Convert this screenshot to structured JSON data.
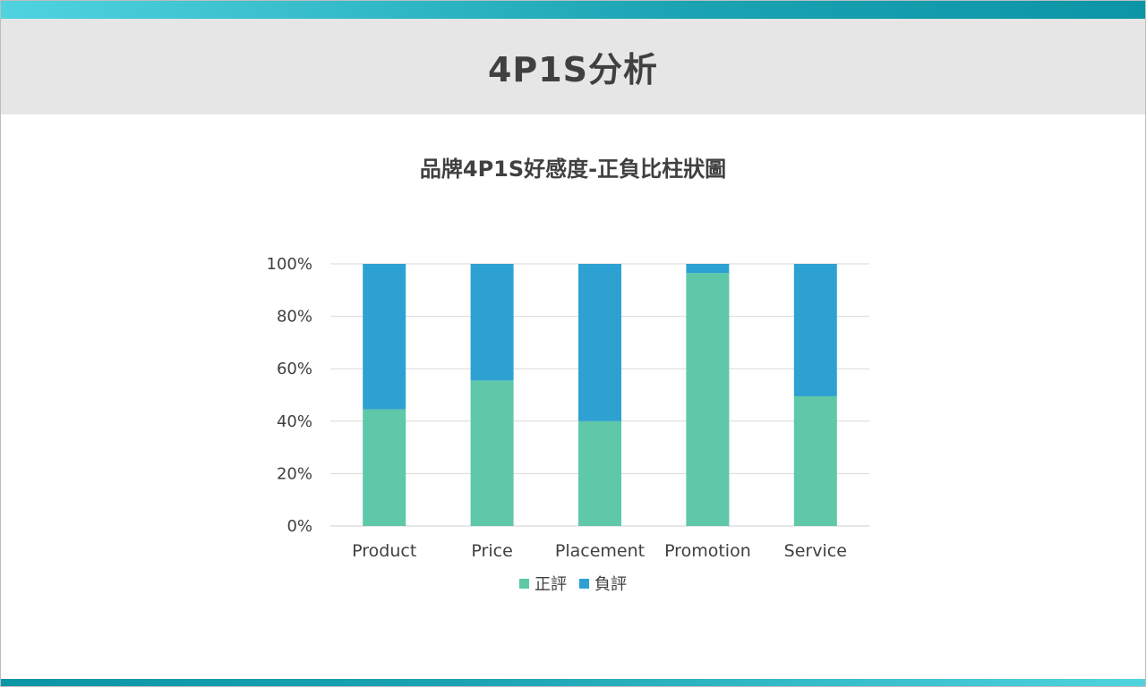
{
  "header": {
    "title": "4P1S分析"
  },
  "colors": {
    "positive": "#5ec8a8",
    "negative": "#2ea1d3",
    "accent": "#1aa3b3"
  },
  "chart_data": {
    "type": "bar",
    "stacked": "percent",
    "title": "品牌4P1S好感度-正負比柱狀圖",
    "categories": [
      "Product",
      "Price",
      "Placement",
      "Promotion",
      "Service"
    ],
    "series": [
      {
        "name": "正評",
        "values": [
          44.5,
          55.5,
          40,
          96.5,
          49.5
        ]
      },
      {
        "name": "負評",
        "values": [
          55.5,
          44.5,
          60,
          3.5,
          50.5
        ]
      }
    ],
    "ylim": [
      0,
      100
    ],
    "yticks": [
      "0%",
      "20%",
      "40%",
      "60%",
      "80%",
      "100%"
    ],
    "grid": true,
    "legend_position": "bottom"
  }
}
